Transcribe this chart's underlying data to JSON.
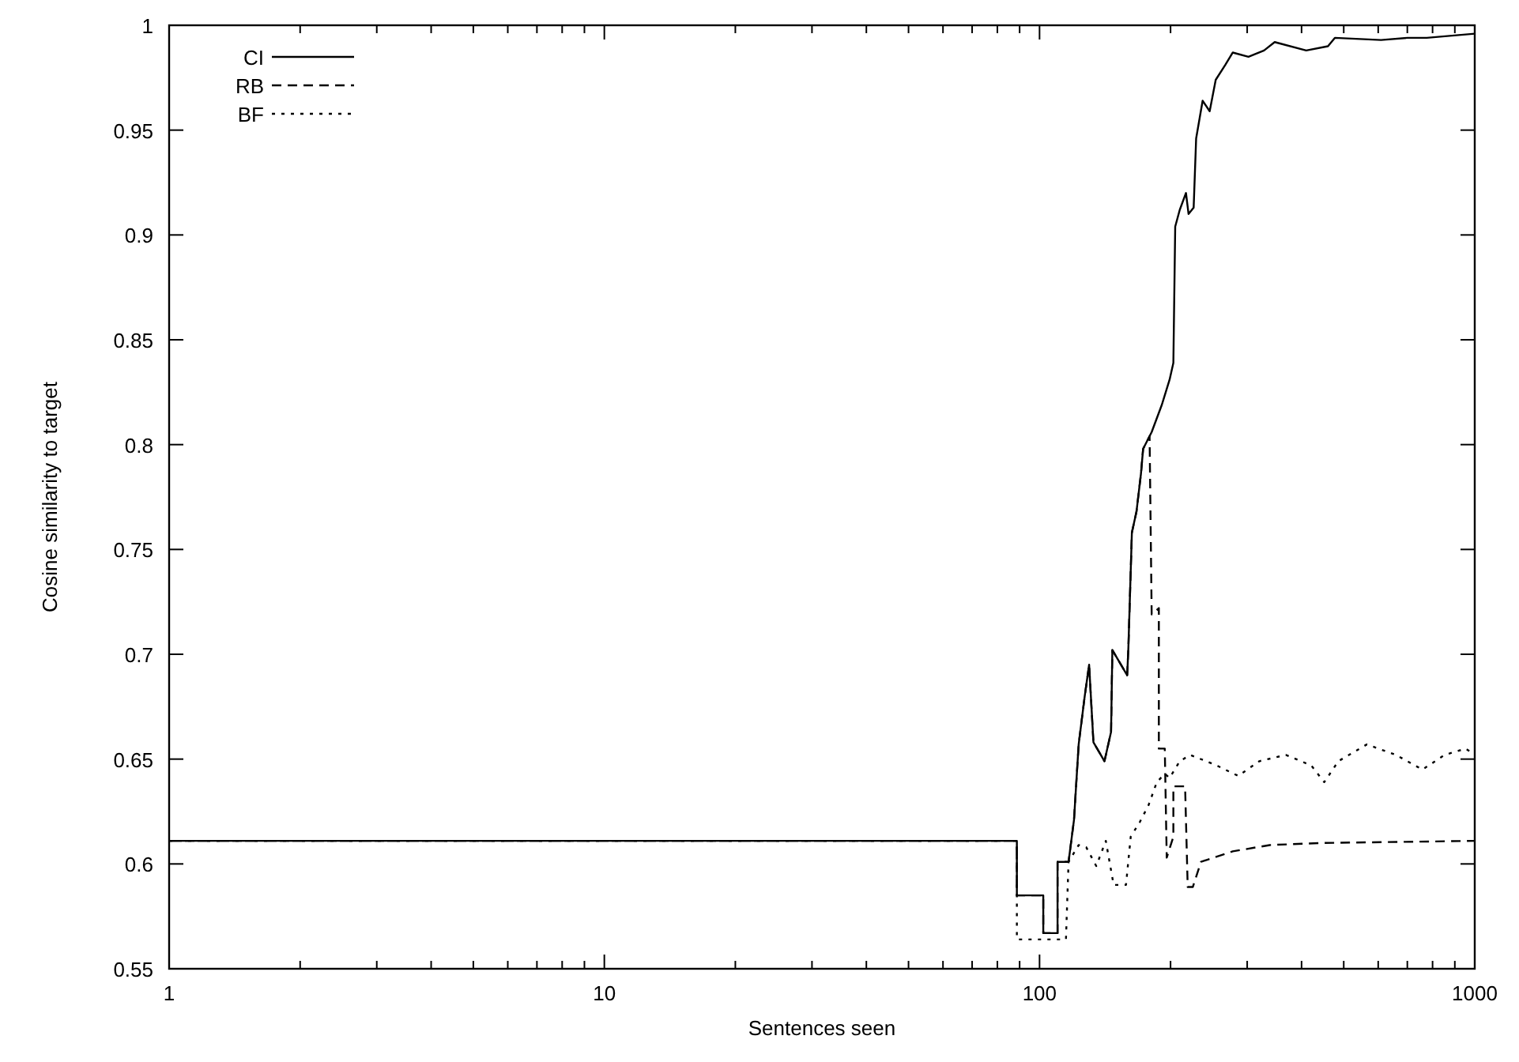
{
  "chart_data": {
    "type": "line",
    "xlabel": "Sentences seen",
    "ylabel": "Cosine similarity to target",
    "log": "x",
    "xlim": [
      1,
      1000
    ],
    "ylim": [
      0.55,
      1
    ],
    "xticks": [
      1,
      {
        "value": 2,
        "label": null
      },
      {
        "value": 3,
        "label": null
      },
      {
        "value": 4,
        "label": null
      },
      {
        "value": 5,
        "label": null
      },
      {
        "value": 6,
        "label": null
      },
      {
        "value": 7,
        "label": null
      },
      {
        "value": 8,
        "label": null
      },
      {
        "value": 9,
        "label": null
      },
      10,
      {
        "value": 20,
        "label": null
      },
      {
        "value": 30,
        "label": null
      },
      {
        "value": 40,
        "label": null
      },
      {
        "value": 50,
        "label": null
      },
      {
        "value": 60,
        "label": null
      },
      {
        "value": 70,
        "label": null
      },
      {
        "value": 80,
        "label": null
      },
      {
        "value": 90,
        "label": null
      },
      100,
      {
        "value": 200,
        "label": null
      },
      {
        "value": 300,
        "label": null
      },
      {
        "value": 400,
        "label": null
      },
      {
        "value": 500,
        "label": null
      },
      {
        "value": 600,
        "label": null
      },
      {
        "value": 700,
        "label": null
      },
      {
        "value": 800,
        "label": null
      },
      {
        "value": 900,
        "label": null
      },
      1000
    ],
    "yticks": [
      0.55,
      0.6,
      0.65,
      0.7,
      0.75,
      0.8,
      0.85,
      0.9,
      0.95,
      1
    ],
    "grid": false,
    "legend": "top left",
    "series": [
      {
        "name": "CI",
        "color": "#000000",
        "line_style": "solid",
        "x": [
          1,
          88.7,
          88.7,
          102,
          102,
          110,
          110,
          116.6,
          120,
          123,
          127,
          130,
          133,
          141,
          146,
          147,
          159,
          160,
          163,
          167,
          171,
          173,
          181,
          191,
          199,
          203,
          205,
          210,
          217,
          220,
          226,
          229,
          237,
          246,
          254,
          267,
          278,
          302,
          328,
          347,
          410,
          460,
          477,
          609,
          700,
          776,
          1000
        ],
        "values": [
          0.611,
          0.611,
          0.585,
          0.585,
          0.567,
          0.567,
          0.601,
          0.601,
          0.621,
          0.657,
          0.68,
          0.695,
          0.658,
          0.649,
          0.663,
          0.702,
          0.69,
          0.703,
          0.758,
          0.768,
          0.786,
          0.798,
          0.806,
          0.819,
          0.831,
          0.839,
          0.904,
          0.912,
          0.92,
          0.91,
          0.913,
          0.946,
          0.964,
          0.959,
          0.974,
          0.981,
          0.987,
          0.985,
          0.988,
          0.992,
          0.988,
          0.99,
          0.994,
          0.993,
          0.994,
          0.994,
          0.996
        ]
      },
      {
        "name": "RB",
        "color": "#000000",
        "line_style": "dashed",
        "x": [
          1,
          88.7,
          88.7,
          102,
          102,
          110,
          110,
          116.6,
          120,
          123,
          127,
          130,
          133,
          141,
          146,
          147,
          159,
          160,
          163,
          167,
          171,
          173,
          179,
          181,
          188,
          188,
          194,
          196,
          203,
          203,
          216,
          219,
          225,
          235,
          278,
          338,
          447,
          1000
        ],
        "values": [
          0.611,
          0.611,
          0.585,
          0.585,
          0.567,
          0.567,
          0.601,
          0.601,
          0.621,
          0.657,
          0.68,
          0.695,
          0.658,
          0.649,
          0.663,
          0.702,
          0.69,
          0.703,
          0.758,
          0.768,
          0.786,
          0.798,
          0.804,
          0.719,
          0.722,
          0.655,
          0.655,
          0.603,
          0.613,
          0.637,
          0.637,
          0.589,
          0.589,
          0.601,
          0.606,
          0.609,
          0.61,
          0.611
        ]
      },
      {
        "name": "BF",
        "color": "#000000",
        "line_style": "dotted",
        "x": [
          1,
          88.7,
          88.7,
          115,
          116.6,
          123,
          128,
          135,
          142,
          148,
          158,
          162,
          170,
          178,
          186,
          194,
          199,
          210,
          222,
          255,
          286,
          320,
          368,
          421,
          451,
          486,
          565,
          659,
          758,
          853,
          953,
          1000
        ],
        "values": [
          0.611,
          0.611,
          0.564,
          0.564,
          0.601,
          0.609,
          0.608,
          0.599,
          0.611,
          0.59,
          0.59,
          0.613,
          0.62,
          0.628,
          0.639,
          0.643,
          0.641,
          0.649,
          0.652,
          0.647,
          0.642,
          0.649,
          0.652,
          0.647,
          0.639,
          0.649,
          0.657,
          0.652,
          0.645,
          0.652,
          0.655,
          0.652
        ]
      }
    ]
  }
}
